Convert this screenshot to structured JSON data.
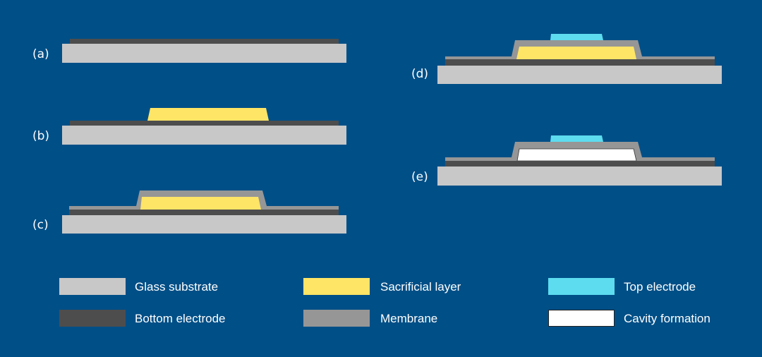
{
  "colors": {
    "background": "#004f87",
    "glass_substrate": "#c8c8c8",
    "bottom_electrode": "#4d4d4d",
    "membrane": "#969696",
    "sacrificial_layer": "#ffe566",
    "top_electrode": "#5ddcef",
    "cavity": "#ffffff"
  },
  "steps": [
    {
      "label": "(a)"
    },
    {
      "label": "(b)"
    },
    {
      "label": "(c)"
    },
    {
      "label": "(d)"
    },
    {
      "label": "(e)"
    }
  ],
  "legend": [
    {
      "label": "Glass substrate"
    },
    {
      "label": "Sacrificial layer"
    },
    {
      "label": "Top electrode"
    },
    {
      "label": "Bottom electrode"
    },
    {
      "label": "Membrane"
    },
    {
      "label": "Cavity formation"
    }
  ]
}
